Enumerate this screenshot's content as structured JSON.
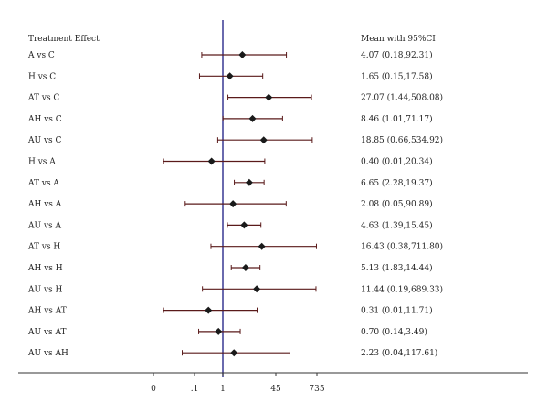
{
  "chart_data": {
    "type": "forest",
    "title": "",
    "left_header": "Treatment Effect",
    "right_header": "Mean with 95%CI",
    "reference_value": 1,
    "x_scale": "log",
    "x_tick_labels": [
      "0",
      ".1",
      "1",
      "45",
      "735"
    ],
    "x_tick_values": [
      0.0047,
      0.1,
      1,
      45,
      735
    ],
    "colors": {
      "ci_line": "#5a1a1a",
      "marker": "#1a1a1a",
      "reference_line": "#2b2b8c",
      "axis": "#333333"
    },
    "rows": [
      {
        "label": "A vs C",
        "mean": 4.07,
        "lower": 0.18,
        "upper": 92.31,
        "text": "4.07 (0.18,92.31)"
      },
      {
        "label": "H vs C",
        "mean": 1.65,
        "lower": 0.15,
        "upper": 17.58,
        "text": "1.65 (0.15,17.58)"
      },
      {
        "label": "AT vs C",
        "mean": 27.07,
        "lower": 1.44,
        "upper": 508.08,
        "text": "27.07 (1.44,508.08)"
      },
      {
        "label": "AH vs C",
        "mean": 8.46,
        "lower": 1.01,
        "upper": 71.17,
        "text": "8.46 (1.01,71.17)"
      },
      {
        "label": "AU vs C",
        "mean": 18.85,
        "lower": 0.66,
        "upper": 534.92,
        "text": "18.85 (0.66,534.92)"
      },
      {
        "label": "H vs A",
        "mean": 0.4,
        "lower": 0.01,
        "upper": 20.34,
        "text": "0.40 (0.01,20.34)"
      },
      {
        "label": "AT vs A",
        "mean": 6.65,
        "lower": 2.28,
        "upper": 19.37,
        "text": "6.65 (2.28,19.37)"
      },
      {
        "label": "AH vs A",
        "mean": 2.08,
        "lower": 0.05,
        "upper": 90.89,
        "text": "2.08 (0.05,90.89)"
      },
      {
        "label": "AU vs A",
        "mean": 4.63,
        "lower": 1.39,
        "upper": 15.45,
        "text": "4.63 (1.39,15.45)"
      },
      {
        "label": "AT vs H",
        "mean": 16.43,
        "lower": 0.38,
        "upper": 711.8,
        "text": "16.43 (0.38,711.80)"
      },
      {
        "label": "AH vs H",
        "mean": 5.13,
        "lower": 1.83,
        "upper": 14.44,
        "text": "5.13 (1.83,14.44)"
      },
      {
        "label": "AU vs H",
        "mean": 11.44,
        "lower": 0.19,
        "upper": 689.33,
        "text": "11.44 (0.19,689.33)"
      },
      {
        "label": "AH vs AT",
        "mean": 0.31,
        "lower": 0.01,
        "upper": 11.71,
        "text": "0.31 (0.01,11.71)"
      },
      {
        "label": "AU vs AT",
        "mean": 0.7,
        "lower": 0.14,
        "upper": 3.49,
        "text": "0.70 (0.14,3.49)"
      },
      {
        "label": "AU vs AH",
        "mean": 2.23,
        "lower": 0.04,
        "upper": 117.61,
        "text": "2.23 (0.04,117.61)"
      }
    ]
  }
}
